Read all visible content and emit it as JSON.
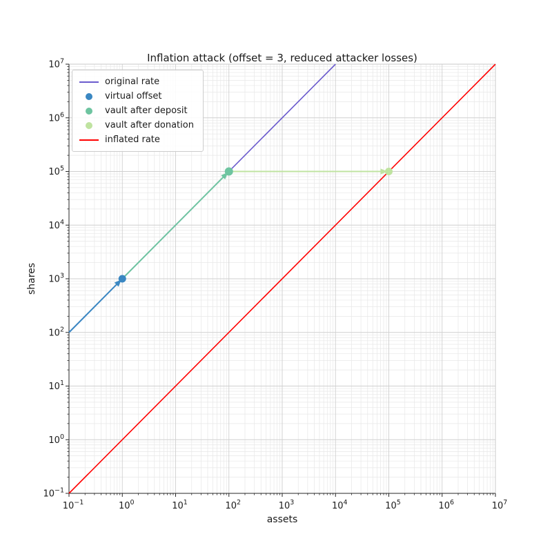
{
  "chart_data": {
    "type": "line",
    "title": "Inflation attack (offset = 3, reduced attacker losses)",
    "xlabel": "assets",
    "ylabel": "shares",
    "xscale": "log",
    "yscale": "log",
    "xlim": [
      0.1,
      10000000
    ],
    "ylim": [
      0.1,
      10000000
    ],
    "tick_exponents": [
      -1,
      0,
      1,
      2,
      3,
      4,
      5,
      6,
      7
    ],
    "grid": "major and minor, both axes",
    "legend_position": "upper left",
    "series": [
      {
        "name": "original rate",
        "kind": "line",
        "color": "#6a5acd",
        "width": 1.6,
        "points": [
          [
            0.1,
            100
          ],
          [
            10000,
            10000000
          ]
        ]
      },
      {
        "name": "inflated rate",
        "kind": "line",
        "color": "#ff0000",
        "width": 1.6,
        "points": [
          [
            0.1,
            0.1
          ],
          [
            10000000,
            10000000
          ]
        ]
      },
      {
        "name": "virtual offset",
        "kind": "point",
        "color": "#3a87c2",
        "radius": 5.5,
        "points": [
          [
            1,
            1000
          ]
        ]
      },
      {
        "name": "vault after deposit",
        "kind": "point",
        "color": "#6ec4a0",
        "radius": 6,
        "points": [
          [
            100,
            100000
          ]
        ]
      },
      {
        "name": "vault after donation",
        "kind": "point",
        "color": "#bfe3a0",
        "radius": 5.5,
        "points": [
          [
            100000,
            100000
          ]
        ]
      }
    ],
    "arrows": [
      {
        "name": "offset-arrow",
        "color": "#3a87c2",
        "width": 2,
        "from": [
          0.1,
          100
        ],
        "to": [
          1,
          1000
        ]
      },
      {
        "name": "deposit-arrow",
        "color": "#6ec4a0",
        "width": 2,
        "from": [
          1,
          1000
        ],
        "to": [
          100,
          100000
        ]
      },
      {
        "name": "donation-arrow",
        "color": "#bfe3a0",
        "width": 2,
        "from": [
          100,
          100000
        ],
        "to": [
          100000,
          100000
        ]
      }
    ],
    "legend_entries": [
      {
        "label": "original rate",
        "marker": "line",
        "color": "#6a5acd"
      },
      {
        "label": "virtual offset",
        "marker": "dot",
        "color": "#3a87c2"
      },
      {
        "label": "vault after deposit",
        "marker": "dot",
        "color": "#6ec4a0"
      },
      {
        "label": "vault after donation",
        "marker": "dot",
        "color": "#bfe3a0"
      },
      {
        "label": "inflated rate",
        "marker": "line",
        "color": "#ff0000"
      }
    ]
  },
  "style_colors": {
    "grid_major": "#cfcfcf",
    "grid_minor": "#e7e7e7",
    "spine_dark": "#262626",
    "spine_light": "#c9c9c9",
    "text": "#1a1a1a"
  }
}
